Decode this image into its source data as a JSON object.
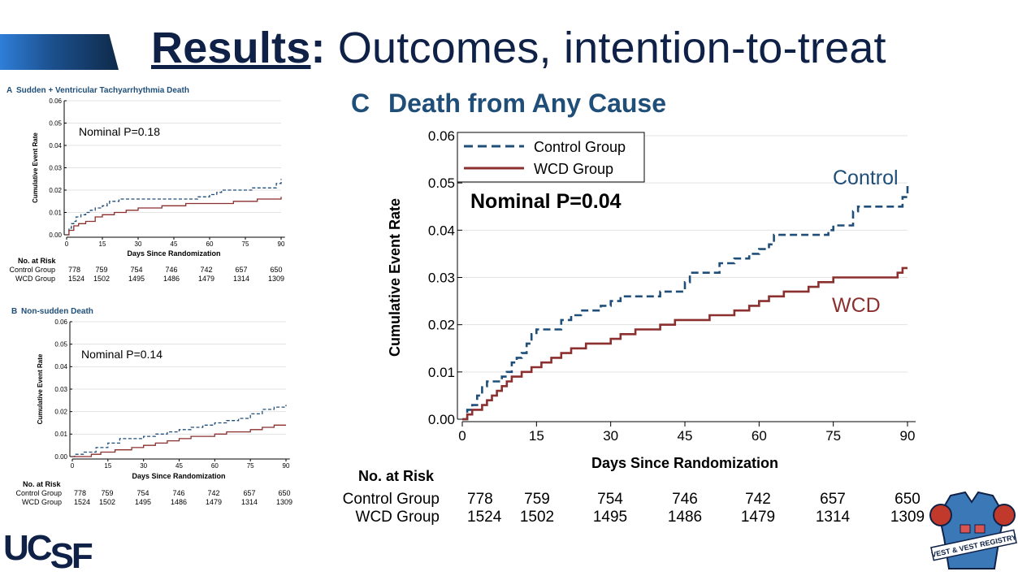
{
  "title": {
    "bold": "Results",
    "colon": ":",
    "rest": " Outcomes, intention-to-treat"
  },
  "colors": {
    "control": "#1f4e79",
    "wcd": "#8b2f2f",
    "title": "#0f2146",
    "brand": "#0f2146"
  },
  "logo": {
    "uc": "UC",
    "sf": "SF"
  },
  "badge": {
    "text": "VEST & VEST REGISTRY"
  },
  "chart_data": [
    {
      "id": "A",
      "type": "line",
      "panel_label": "A",
      "title": "Sudden + Ventricular Tachyarrhythmia Death",
      "xlabel": "Days Since Randomization",
      "ylabel": "Cumulative Event Rate",
      "annotation": "Nominal P=0.18",
      "xlim": [
        0,
        90
      ],
      "ylim": [
        0,
        0.06
      ],
      "x_ticks": [
        "0",
        "15",
        "30",
        "45",
        "60",
        "75",
        "90"
      ],
      "y_ticks": [
        "0.00",
        "0.01",
        "0.02",
        "0.03",
        "0.04",
        "0.05",
        "0.06"
      ],
      "series": [
        {
          "name": "Control Group",
          "style": "dashed",
          "x": [
            0,
            1,
            2,
            3,
            4,
            6,
            8,
            10,
            12,
            15,
            17,
            18,
            20,
            22,
            50,
            55,
            60,
            63,
            65,
            75,
            78,
            88,
            90
          ],
          "y": [
            0,
            0.003,
            0.005,
            0.006,
            0.008,
            0.009,
            0.01,
            0.011,
            0.012,
            0.013,
            0.014,
            0.015,
            0.015,
            0.016,
            0.016,
            0.017,
            0.018,
            0.019,
            0.02,
            0.02,
            0.021,
            0.023,
            0.025
          ]
        },
        {
          "name": "WCD Group",
          "style": "solid",
          "x": [
            0,
            1,
            3,
            5,
            8,
            12,
            15,
            20,
            25,
            30,
            40,
            50,
            60,
            70,
            80,
            88,
            90
          ],
          "y": [
            0,
            0.002,
            0.004,
            0.005,
            0.006,
            0.008,
            0.009,
            0.01,
            0.011,
            0.012,
            0.013,
            0.014,
            0.014,
            0.015,
            0.016,
            0.016,
            0.017
          ]
        }
      ],
      "risk": {
        "header": "No. at Risk",
        "rows": [
          {
            "label": "Control Group",
            "values": [
              "778",
              "759",
              "754",
              "746",
              "742",
              "657",
              "650"
            ]
          },
          {
            "label": "WCD Group",
            "values": [
              "1524",
              "1502",
              "1495",
              "1486",
              "1479",
              "1314",
              "1309"
            ]
          }
        ]
      }
    },
    {
      "id": "B",
      "type": "line",
      "panel_label": "B",
      "title": "Non-sudden Death",
      "xlabel": "Days Since Randomization",
      "ylabel": "Cumulative Event Rate",
      "annotation": "Nominal P=0.14",
      "xlim": [
        0,
        90
      ],
      "ylim": [
        0,
        0.06
      ],
      "x_ticks": [
        "0",
        "15",
        "30",
        "45",
        "60",
        "75",
        "90"
      ],
      "y_ticks": [
        "0.00",
        "0.01",
        "0.02",
        "0.03",
        "0.04",
        "0.05",
        "0.06"
      ],
      "series": [
        {
          "name": "Control Group",
          "style": "dashed",
          "x": [
            0,
            1,
            5,
            10,
            15,
            20,
            30,
            35,
            40,
            45,
            50,
            55,
            60,
            65,
            70,
            75,
            80,
            85,
            90
          ],
          "y": [
            0,
            0.001,
            0.002,
            0.004,
            0.006,
            0.008,
            0.009,
            0.01,
            0.011,
            0.012,
            0.013,
            0.014,
            0.015,
            0.016,
            0.017,
            0.019,
            0.021,
            0.022,
            0.023
          ]
        },
        {
          "name": "WCD Group",
          "style": "solid",
          "x": [
            0,
            3,
            8,
            12,
            18,
            25,
            30,
            35,
            40,
            45,
            50,
            55,
            60,
            65,
            70,
            75,
            80,
            85,
            90
          ],
          "y": [
            0,
            0.0,
            0.001,
            0.002,
            0.003,
            0.004,
            0.005,
            0.006,
            0.007,
            0.008,
            0.009,
            0.009,
            0.01,
            0.011,
            0.011,
            0.012,
            0.013,
            0.014,
            0.014
          ]
        }
      ],
      "risk": {
        "header": "No. at Risk",
        "rows": [
          {
            "label": "Control Group",
            "values": [
              "778",
              "759",
              "754",
              "746",
              "742",
              "657",
              "650"
            ]
          },
          {
            "label": "WCD Group",
            "values": [
              "1524",
              "1502",
              "1495",
              "1486",
              "1479",
              "1314",
              "1309"
            ]
          }
        ]
      }
    },
    {
      "id": "C",
      "type": "line",
      "panel_label": "C",
      "title": "Death from Any Cause",
      "xlabel": "Days Since Randomization",
      "ylabel": "Cumulative Event Rate",
      "annotation": "Nominal P=0.04",
      "legend": [
        "Control Group",
        "WCD Group"
      ],
      "legend_position": "top-left",
      "end_labels": [
        "Control",
        "WCD"
      ],
      "xlim": [
        0,
        90
      ],
      "ylim": [
        0,
        0.06
      ],
      "x_ticks": [
        "0",
        "15",
        "30",
        "45",
        "60",
        "75",
        "90"
      ],
      "y_ticks": [
        "0.00",
        "0.01",
        "0.02",
        "0.03",
        "0.04",
        "0.05",
        "0.06"
      ],
      "series": [
        {
          "name": "Control Group",
          "style": "dashed",
          "x": [
            0,
            1,
            2,
            3,
            4,
            5,
            6,
            7,
            8,
            9,
            10,
            11,
            12,
            13,
            14,
            15,
            20,
            22,
            24,
            28,
            30,
            32,
            35,
            40,
            43,
            45,
            46,
            50,
            52,
            55,
            58,
            60,
            62,
            63,
            65,
            70,
            74,
            75,
            79,
            80,
            88,
            89,
            90
          ],
          "y": [
            0,
            0.002,
            0.003,
            0.005,
            0.007,
            0.008,
            0.008,
            0.008,
            0.009,
            0.01,
            0.012,
            0.013,
            0.014,
            0.016,
            0.018,
            0.019,
            0.021,
            0.022,
            0.023,
            0.024,
            0.025,
            0.026,
            0.026,
            0.027,
            0.027,
            0.029,
            0.031,
            0.031,
            0.033,
            0.034,
            0.035,
            0.036,
            0.037,
            0.039,
            0.039,
            0.039,
            0.04,
            0.041,
            0.044,
            0.045,
            0.045,
            0.047,
            0.05
          ]
        },
        {
          "name": "WCD Group",
          "style": "solid",
          "x": [
            0,
            1,
            2,
            3,
            4,
            5,
            6,
            7,
            8,
            9,
            10,
            12,
            14,
            16,
            18,
            20,
            22,
            25,
            28,
            30,
            32,
            35,
            38,
            40,
            43,
            45,
            50,
            52,
            55,
            58,
            60,
            62,
            65,
            68,
            70,
            72,
            75,
            80,
            85,
            88,
            89,
            90
          ],
          "y": [
            0,
            0.001,
            0.002,
            0.002,
            0.003,
            0.004,
            0.005,
            0.006,
            0.007,
            0.008,
            0.009,
            0.01,
            0.011,
            0.012,
            0.013,
            0.014,
            0.015,
            0.016,
            0.016,
            0.017,
            0.018,
            0.019,
            0.019,
            0.02,
            0.021,
            0.021,
            0.022,
            0.022,
            0.023,
            0.024,
            0.025,
            0.026,
            0.027,
            0.027,
            0.028,
            0.029,
            0.03,
            0.03,
            0.03,
            0.031,
            0.032,
            0.032
          ]
        }
      ],
      "risk": {
        "header": "No. at Risk",
        "rows": [
          {
            "label": "Control Group",
            "values": [
              "778",
              "759",
              "754",
              "746",
              "742",
              "657",
              "650"
            ]
          },
          {
            "label": "WCD Group",
            "values": [
              "1524",
              "1502",
              "1495",
              "1486",
              "1479",
              "1314",
              "1309"
            ]
          }
        ]
      }
    }
  ]
}
